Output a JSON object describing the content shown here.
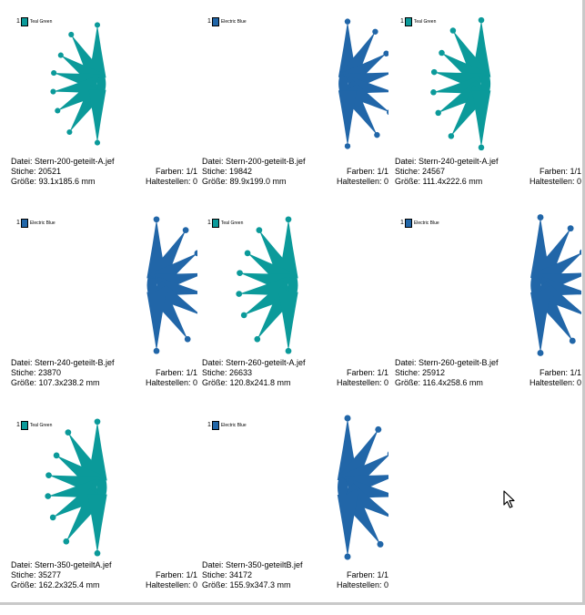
{
  "cells": [
    {
      "color_name": "Teal Green",
      "color": "#0b9a9a",
      "file_label": "Datei: Stern-200-geteilt-A.jef",
      "stitches_label": "Stiche: 20521",
      "colors_label": "Farben: 1/1",
      "size_label": "Größe: 93.1x185.6 mm",
      "stops_label": "Haltestellen: 0"
    },
    {
      "color_name": "Electric Blue",
      "color": "#2166a8",
      "file_label": "Datei: Stern-200-geteilt-B.jef",
      "stitches_label": "Stiche: 19842",
      "colors_label": "Farben: 1/1",
      "size_label": "Größe: 89.9x199.0 mm",
      "stops_label": "Haltestellen: 0"
    },
    {
      "color_name": "Teal Green",
      "color": "#0b9a9a",
      "file_label": "Datei: Stern-240-geteilt-A.jef",
      "stitches_label": "Stiche: 24567",
      "colors_label": "Farben: 1/1",
      "size_label": "Größe: 111.4x222.6 mm",
      "stops_label": "Haltestellen: 0"
    },
    {
      "color_name": "Electric Blue",
      "color": "#2166a8",
      "file_label": "Datei: Stern-240-geteilt-B.jef",
      "stitches_label": "Stiche: 23870",
      "colors_label": "Farben: 1/1",
      "size_label": "Größe: 107.3x238.2 mm",
      "stops_label": "Haltestellen: 0"
    },
    {
      "color_name": "Teal Green",
      "color": "#0b9a9a",
      "file_label": "Datei: Stern-260-geteilt-A.jef",
      "stitches_label": "Stiche: 26633",
      "colors_label": "Farben: 1/1",
      "size_label": "Größe: 120.8x241.8 mm",
      "stops_label": "Haltestellen: 0"
    },
    {
      "color_name": "Electric Blue",
      "color": "#2166a8",
      "file_label": "Datei: Stern-260-geteilt-B.jef",
      "stitches_label": "Stiche: 25912",
      "colors_label": "Farben: 1/1",
      "size_label": "Größe: 116.4x258.6 mm",
      "stops_label": "Haltestellen: 0"
    },
    {
      "color_name": "Teal Green",
      "color": "#0b9a9a",
      "file_label": "Datei: Stern-350-geteiltA.jef",
      "stitches_label": "Stiche: 35277",
      "colors_label": "Farben: 1/1",
      "size_label": "Größe: 162.2x325.4 mm",
      "stops_label": "Haltestellen: 0"
    },
    {
      "color_name": "Electric Blue",
      "color": "#2166a8",
      "file_label": "Datei: Stern-350-geteiltB.jef",
      "stitches_label": "Stiche: 34172",
      "colors_label": "Farben: 1/1",
      "size_label": "Größe: 155.9x347.3 mm",
      "stops_label": "Haltestellen: 0"
    }
  ],
  "swatch_number": "1"
}
